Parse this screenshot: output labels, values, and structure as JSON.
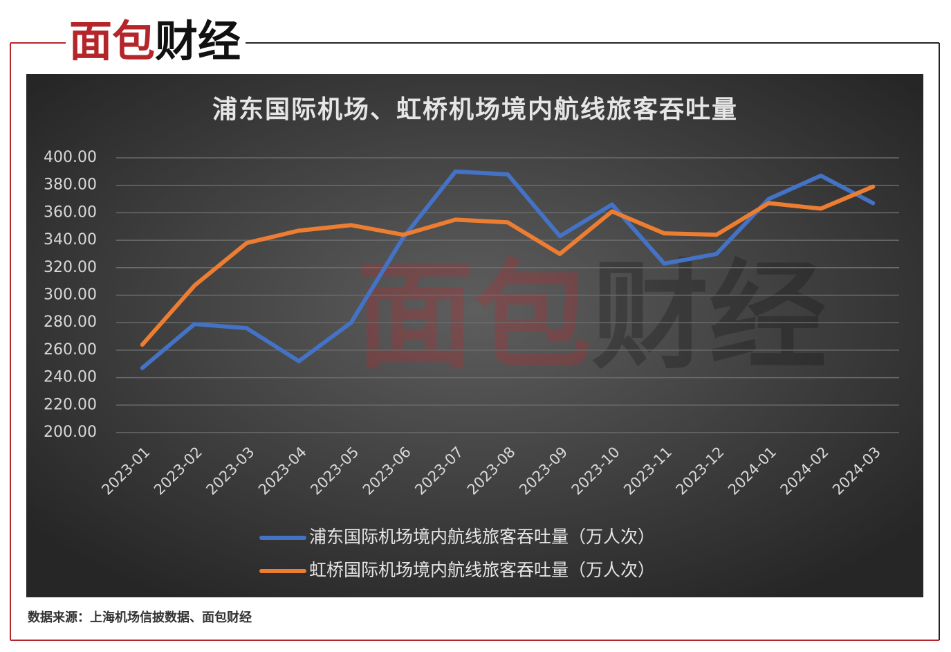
{
  "logo": {
    "red": "面包",
    "black": "财经"
  },
  "chart_data": {
    "type": "line",
    "title": "浦东国际机场、虹桥机场境内航线旅客吞吐量",
    "categories": [
      "2023-01",
      "2023-02",
      "2023-03",
      "2023-04",
      "2023-05",
      "2023-06",
      "2023-07",
      "2023-08",
      "2023-09",
      "2023-10",
      "2023-11",
      "2023-12",
      "2024-01",
      "2024-02",
      "2024-03"
    ],
    "series": [
      {
        "name": "浦东国际机场境内航线旅客吞吐量（万人次）",
        "color": "#4472c4",
        "values": [
          247,
          279,
          276,
          252,
          280,
          342,
          390,
          388,
          343,
          366,
          323,
          330,
          370,
          387,
          367
        ]
      },
      {
        "name": "虹桥国际机场境内航线旅客吞吐量（万人次）",
        "color": "#ed7d31",
        "values": [
          264,
          307,
          338,
          347,
          351,
          344,
          355,
          353,
          330,
          361,
          345,
          344,
          367,
          363,
          379
        ]
      }
    ],
    "ylim": [
      200,
      400
    ],
    "yticks": [
      {
        "value": 200,
        "label": "200.00"
      },
      {
        "value": 220,
        "label": "220.00"
      },
      {
        "value": 240,
        "label": "240.00"
      },
      {
        "value": 260,
        "label": "260.00"
      },
      {
        "value": 280,
        "label": "280.00"
      },
      {
        "value": 300,
        "label": "300.00"
      },
      {
        "value": 320,
        "label": "320.00"
      },
      {
        "value": 340,
        "label": "340.00"
      },
      {
        "value": 360,
        "label": "360.00"
      },
      {
        "value": 380,
        "label": "380.00"
      },
      {
        "value": 400,
        "label": "400.00"
      }
    ],
    "grid": true,
    "legend": "bottom"
  },
  "source": "数据来源：上海机场信披数据、面包财经"
}
